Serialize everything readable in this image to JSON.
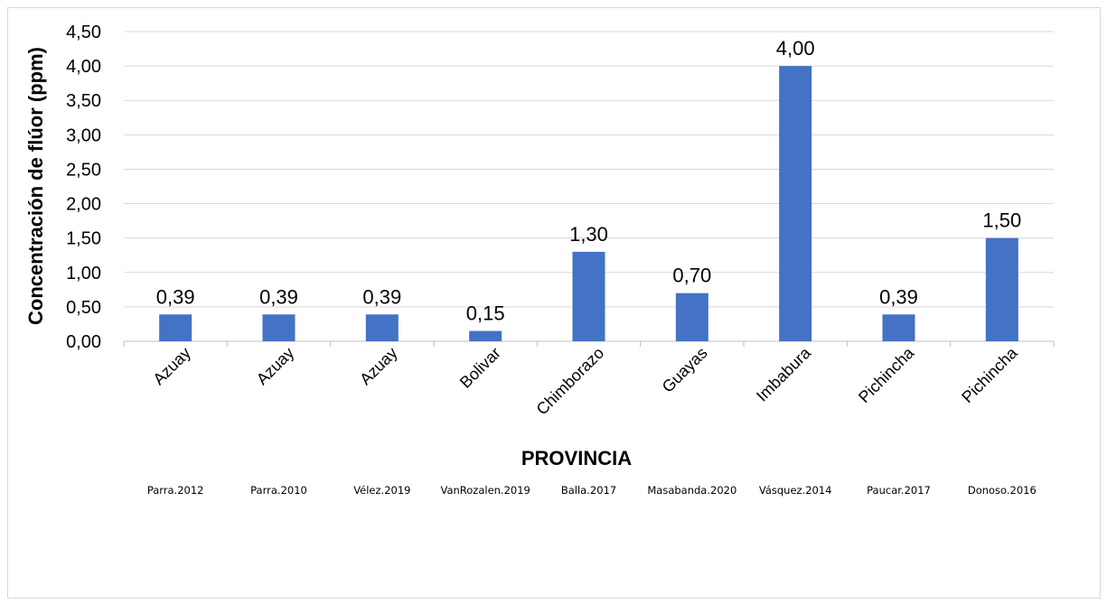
{
  "chart_data": {
    "type": "bar",
    "categories": [
      "Azuay",
      "Azuay",
      "Azuay",
      "Bolivar",
      "Chimborazo",
      "Guayas",
      "Imbabura",
      "Pichincha",
      "Pichincha"
    ],
    "values": [
      0.39,
      0.39,
      0.39,
      0.15,
      1.3,
      0.7,
      4.0,
      0.39,
      1.5
    ],
    "data_labels": [
      "0,39",
      "0,39",
      "0,39",
      "0,15",
      "1,30",
      "0,70",
      "4,00",
      "0,39",
      "1,50"
    ],
    "sources": [
      "Parra.2012",
      "Parra.2010",
      "Vélez.2019",
      "VanRozalen.2019",
      "Balla.2017",
      "Masabanda.2020",
      "Vásquez.2014",
      "Paucar.2017",
      "Donoso.2016"
    ],
    "xlabel": "PROVINCIA",
    "ylabel": "Concentración de flúor (ppm)",
    "ylim": [
      0,
      4.5
    ],
    "yticks": [
      "0,00",
      "0,50",
      "1,00",
      "1,50",
      "2,00",
      "2,50",
      "3,00",
      "3,50",
      "4,00",
      "4,50"
    ],
    "grid": true,
    "bar_color": "#4472C4"
  }
}
